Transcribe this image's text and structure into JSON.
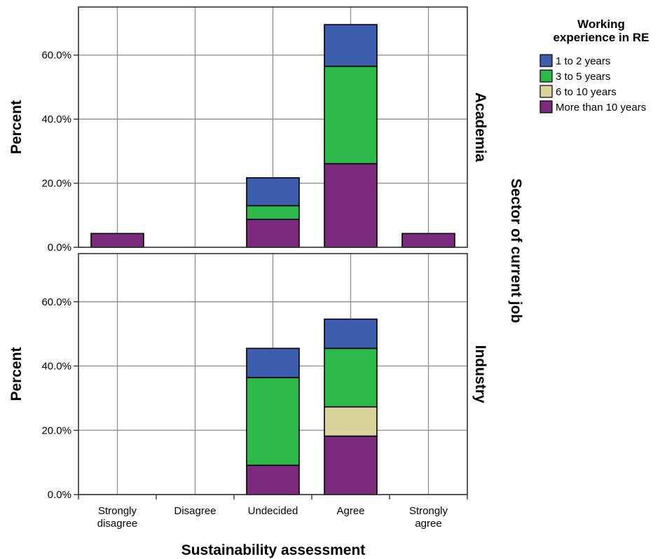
{
  "chart_data": {
    "type": "bar",
    "stacked": true,
    "xlabel": "Sustainability assessment",
    "ylabel": "Percent",
    "facet_label": "Sector of current job",
    "categories": [
      [
        "Strongly",
        "disagree"
      ],
      [
        "Disagree"
      ],
      [
        "Undecided"
      ],
      [
        "Agree"
      ],
      [
        "Strongly",
        "agree"
      ]
    ],
    "ylim": [
      0,
      75
    ],
    "yticks": [
      0,
      20,
      40,
      60
    ],
    "ytick_labels": [
      "0.0%",
      "20.0%",
      "40.0%",
      "60.0%"
    ],
    "grid": true,
    "legend": {
      "title": [
        "Working",
        "experience in RE"
      ],
      "position": "top-right",
      "entries": [
        "1 to 2 years",
        "3 to 5 years",
        "6 to 10 years",
        "More than 10 years"
      ]
    },
    "colors": {
      "1 to 2 years": "#3d5eaf",
      "3 to 5 years": "#2db84a",
      "6 to 10 years": "#d9d49b",
      "More than 10 years": "#7b2a7e"
    },
    "stack_order": [
      "More than 10 years",
      "6 to 10 years",
      "3 to 5 years",
      "1 to 2 years"
    ],
    "panels": [
      {
        "label": "Academia",
        "series": [
          {
            "name": "More than 10 years",
            "values": [
              4.3,
              0,
              8.7,
              26.1,
              4.3
            ]
          },
          {
            "name": "6 to 10 years",
            "values": [
              0,
              0,
              0,
              0,
              0
            ]
          },
          {
            "name": "3 to 5 years",
            "values": [
              0,
              0,
              4.3,
              30.4,
              0
            ]
          },
          {
            "name": "1 to 2 years",
            "values": [
              0,
              0,
              8.7,
              13.0,
              0
            ]
          }
        ]
      },
      {
        "label": "Industry",
        "series": [
          {
            "name": "More than 10 years",
            "values": [
              0,
              0,
              9.1,
              18.2,
              0
            ]
          },
          {
            "name": "6 to 10 years",
            "values": [
              0,
              0,
              0,
              9.1,
              0
            ]
          },
          {
            "name": "3 to 5 years",
            "values": [
              0,
              0,
              27.3,
              18.2,
              0
            ]
          },
          {
            "name": "1 to 2 years",
            "values": [
              0,
              0,
              9.1,
              9.1,
              0
            ]
          }
        ]
      }
    ]
  }
}
